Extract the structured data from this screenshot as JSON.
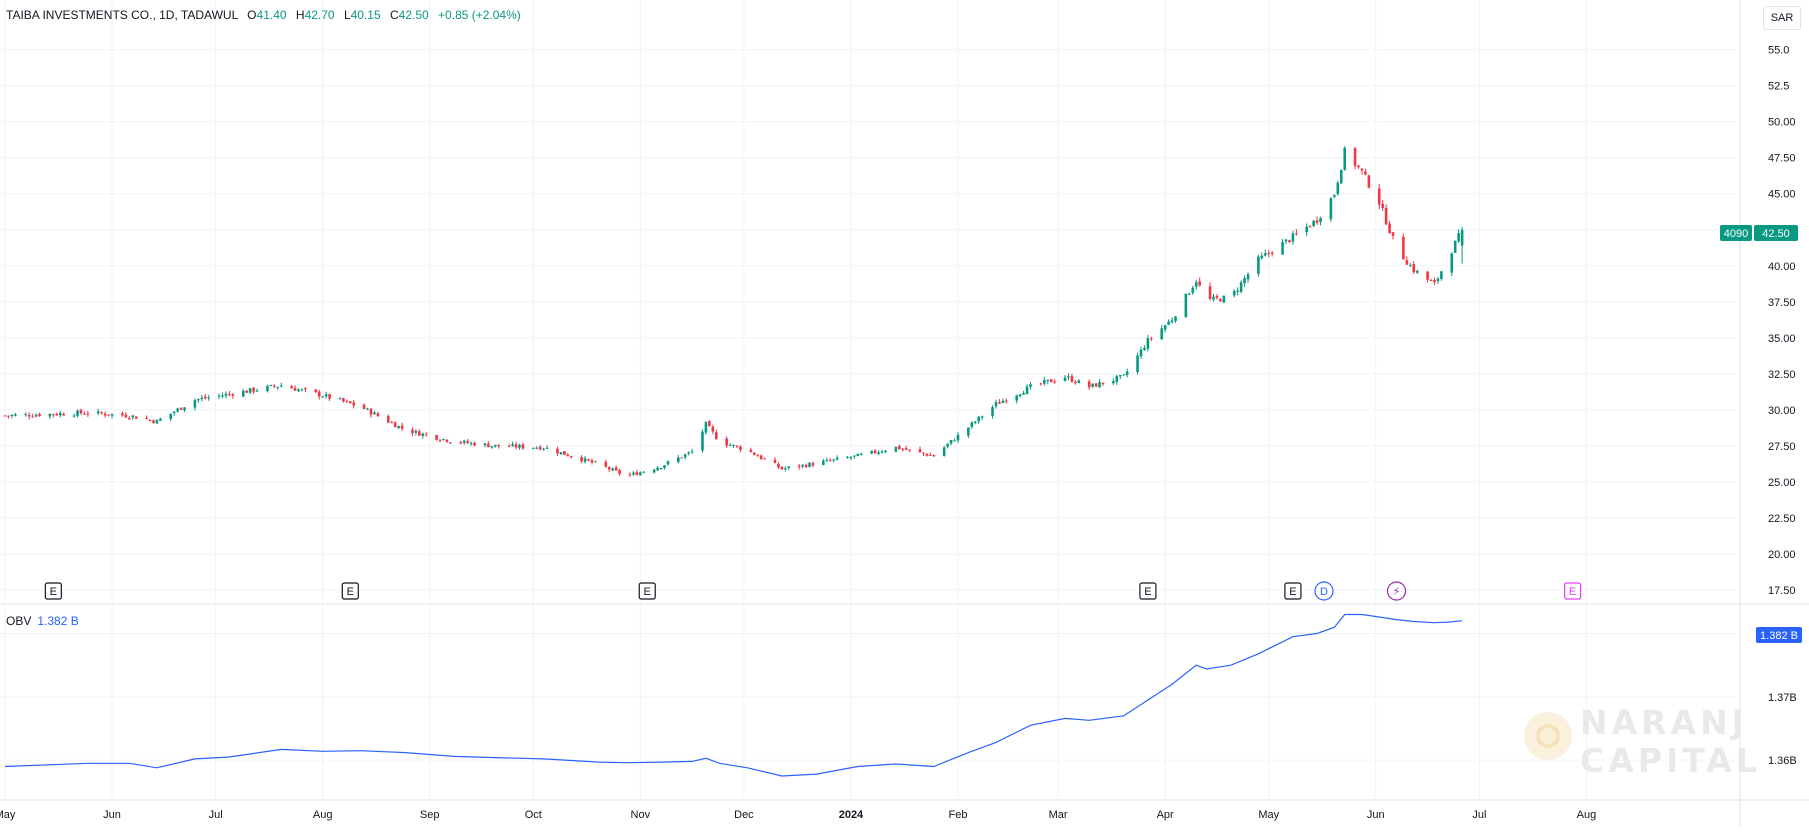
{
  "legend": {
    "symbol": "TAIBA INVESTMENTS CO., 1D, TADAWUL",
    "open_label": "O",
    "open": "41.40",
    "high_label": "H",
    "high": "42.70",
    "low_label": "L",
    "low": "40.15",
    "close_label": "C",
    "close": "42.50",
    "change": "+0.85 (+2.04%)"
  },
  "currency": "SAR",
  "price_badge": {
    "ticker": "4090",
    "last": "42.50"
  },
  "obv_legend": {
    "name": "OBV",
    "value": "1.382 B"
  },
  "obv_badge": "1.382 B",
  "watermark": {
    "line1": "NARANJ",
    "line2": "CAPITAL"
  },
  "colors": {
    "up": "#089981",
    "down": "#f23645",
    "obv": "#2962ff",
    "grid": "#f0f3fa",
    "axis_text": "#131722"
  },
  "chart_data": [
    {
      "type": "candlestick",
      "title": "TAIBA INVESTMENTS CO., 1D, TADAWUL",
      "x_axis": {
        "tick_labels": [
          "May",
          "Jun",
          "Jul",
          "Aug",
          "Sep",
          "Oct",
          "Nov",
          "Dec",
          "2024",
          "Feb",
          "Mar",
          "Apr",
          "May",
          "Jun",
          "Jul",
          "Aug"
        ],
        "range": [
          "2023-05-01",
          "2024-08-31"
        ]
      },
      "y_axis": {
        "range": [
          17.5,
          56.5
        ],
        "tick_labels": [
          "55.0",
          "52.5",
          "50.00",
          "47.50",
          "45.00",
          "42.50",
          "40.00",
          "37.50",
          "35.00",
          "32.50",
          "30.00",
          "27.50",
          "25.00",
          "22.50",
          "20.00",
          "17.50"
        ]
      },
      "events": [
        {
          "date": "2023-05-15",
          "label": "E"
        },
        {
          "date": "2023-08-09",
          "label": "E"
        },
        {
          "date": "2023-11-03",
          "label": "E"
        },
        {
          "date": "2024-03-27",
          "label": "E"
        },
        {
          "date": "2024-05-08",
          "label": "E"
        },
        {
          "date": "2024-05-17",
          "label": "D"
        },
        {
          "date": "2024-06-07",
          "label": "⚡"
        },
        {
          "date": "2024-07-28",
          "label": "E"
        }
      ],
      "close_trajectory": [
        [
          "2023-05-01",
          29.6
        ],
        [
          "2023-05-25",
          29.8
        ],
        [
          "2023-06-06",
          29.6
        ],
        [
          "2023-06-14",
          29.2
        ],
        [
          "2023-06-25",
          30.7
        ],
        [
          "2023-07-05",
          31.1
        ],
        [
          "2023-07-20",
          31.7
        ],
        [
          "2023-08-01",
          31.0
        ],
        [
          "2023-08-12",
          30.2
        ],
        [
          "2023-08-25",
          28.6
        ],
        [
          "2023-09-08",
          27.8
        ],
        [
          "2023-09-20",
          27.5
        ],
        [
          "2023-10-04",
          27.4
        ],
        [
          "2023-10-20",
          26.2
        ],
        [
          "2023-10-28",
          25.4
        ],
        [
          "2023-11-07",
          26.1
        ],
        [
          "2023-11-16",
          27.1
        ],
        [
          "2023-11-20",
          29.0
        ],
        [
          "2023-11-24",
          27.8
        ],
        [
          "2023-12-02",
          27.2
        ],
        [
          "2023-12-12",
          25.9
        ],
        [
          "2023-12-22",
          26.3
        ],
        [
          "2024-01-03",
          26.8
        ],
        [
          "2024-01-14",
          27.4
        ],
        [
          "2024-01-25",
          26.8
        ],
        [
          "2024-02-04",
          28.8
        ],
        [
          "2024-02-12",
          30.4
        ],
        [
          "2024-02-22",
          31.6
        ],
        [
          "2024-03-03",
          32.3
        ],
        [
          "2024-03-10",
          31.6
        ],
        [
          "2024-03-20",
          32.3
        ],
        [
          "2024-03-27",
          34.8
        ],
        [
          "2024-04-03",
          36.3
        ],
        [
          "2024-04-10",
          39.0
        ],
        [
          "2024-04-13",
          37.6
        ],
        [
          "2024-04-20",
          37.8
        ],
        [
          "2024-04-28",
          40.4
        ],
        [
          "2024-05-08",
          42.0
        ],
        [
          "2024-05-15",
          43.2
        ],
        [
          "2024-05-20",
          45.0
        ],
        [
          "2024-05-23",
          47.9
        ],
        [
          "2024-05-28",
          46.5
        ],
        [
          "2024-06-02",
          44.4
        ],
        [
          "2024-06-07",
          41.2
        ],
        [
          "2024-06-12",
          39.7
        ],
        [
          "2024-06-18",
          38.7
        ],
        [
          "2024-06-22",
          40.6
        ],
        [
          "2024-06-26",
          42.5
        ]
      ],
      "last_candle": {
        "date": "2024-06-26",
        "open": 41.4,
        "high": 42.7,
        "low": 40.15,
        "close": 42.5
      }
    },
    {
      "type": "line",
      "title": "OBV",
      "y_axis": {
        "tick_labels": [
          "1.38B",
          "1.37B",
          "1.36B"
        ],
        "ticks": [
          1.38,
          1.37,
          1.36
        ],
        "range": [
          1.3545,
          1.3845
        ]
      },
      "series": [
        {
          "name": "OBV",
          "units": "B",
          "points": [
            [
              "2023-05-01",
              1.359
            ],
            [
              "2023-05-25",
              1.3595
            ],
            [
              "2023-06-06",
              1.3595
            ],
            [
              "2023-06-14",
              1.3588
            ],
            [
              "2023-06-25",
              1.3602
            ],
            [
              "2023-07-05",
              1.3605
            ],
            [
              "2023-07-20",
              1.3617
            ],
            [
              "2023-08-01",
              1.3614
            ],
            [
              "2023-08-12",
              1.3615
            ],
            [
              "2023-08-25",
              1.3612
            ],
            [
              "2023-09-08",
              1.3606
            ],
            [
              "2023-09-20",
              1.3604
            ],
            [
              "2023-10-04",
              1.3602
            ],
            [
              "2023-10-20",
              1.3597
            ],
            [
              "2023-10-28",
              1.3596
            ],
            [
              "2023-11-07",
              1.3597
            ],
            [
              "2023-11-16",
              1.3598
            ],
            [
              "2023-11-20",
              1.3603
            ],
            [
              "2023-11-24",
              1.3595
            ],
            [
              "2023-12-02",
              1.3588
            ],
            [
              "2023-12-12",
              1.3575
            ],
            [
              "2023-12-22",
              1.3578
            ],
            [
              "2024-01-03",
              1.359
            ],
            [
              "2024-01-14",
              1.3594
            ],
            [
              "2024-01-25",
              1.359
            ],
            [
              "2024-02-04",
              1.3612
            ],
            [
              "2024-02-12",
              1.3628
            ],
            [
              "2024-02-22",
              1.3655
            ],
            [
              "2024-03-03",
              1.3666
            ],
            [
              "2024-03-10",
              1.3663
            ],
            [
              "2024-03-20",
              1.367
            ],
            [
              "2024-03-27",
              1.3695
            ],
            [
              "2024-04-03",
              1.372
            ],
            [
              "2024-04-10",
              1.375
            ],
            [
              "2024-04-13",
              1.3744
            ],
            [
              "2024-04-20",
              1.375
            ],
            [
              "2024-04-28",
              1.3768
            ],
            [
              "2024-05-08",
              1.3795
            ],
            [
              "2024-05-15",
              1.38
            ],
            [
              "2024-05-20",
              1.381
            ],
            [
              "2024-05-23",
              1.383
            ],
            [
              "2024-05-28",
              1.383
            ],
            [
              "2024-06-02",
              1.3826
            ],
            [
              "2024-06-07",
              1.3822
            ],
            [
              "2024-06-12",
              1.3819
            ],
            [
              "2024-06-18",
              1.3817
            ],
            [
              "2024-06-22",
              1.3818
            ],
            [
              "2024-06-26",
              1.382
            ]
          ]
        }
      ]
    }
  ]
}
